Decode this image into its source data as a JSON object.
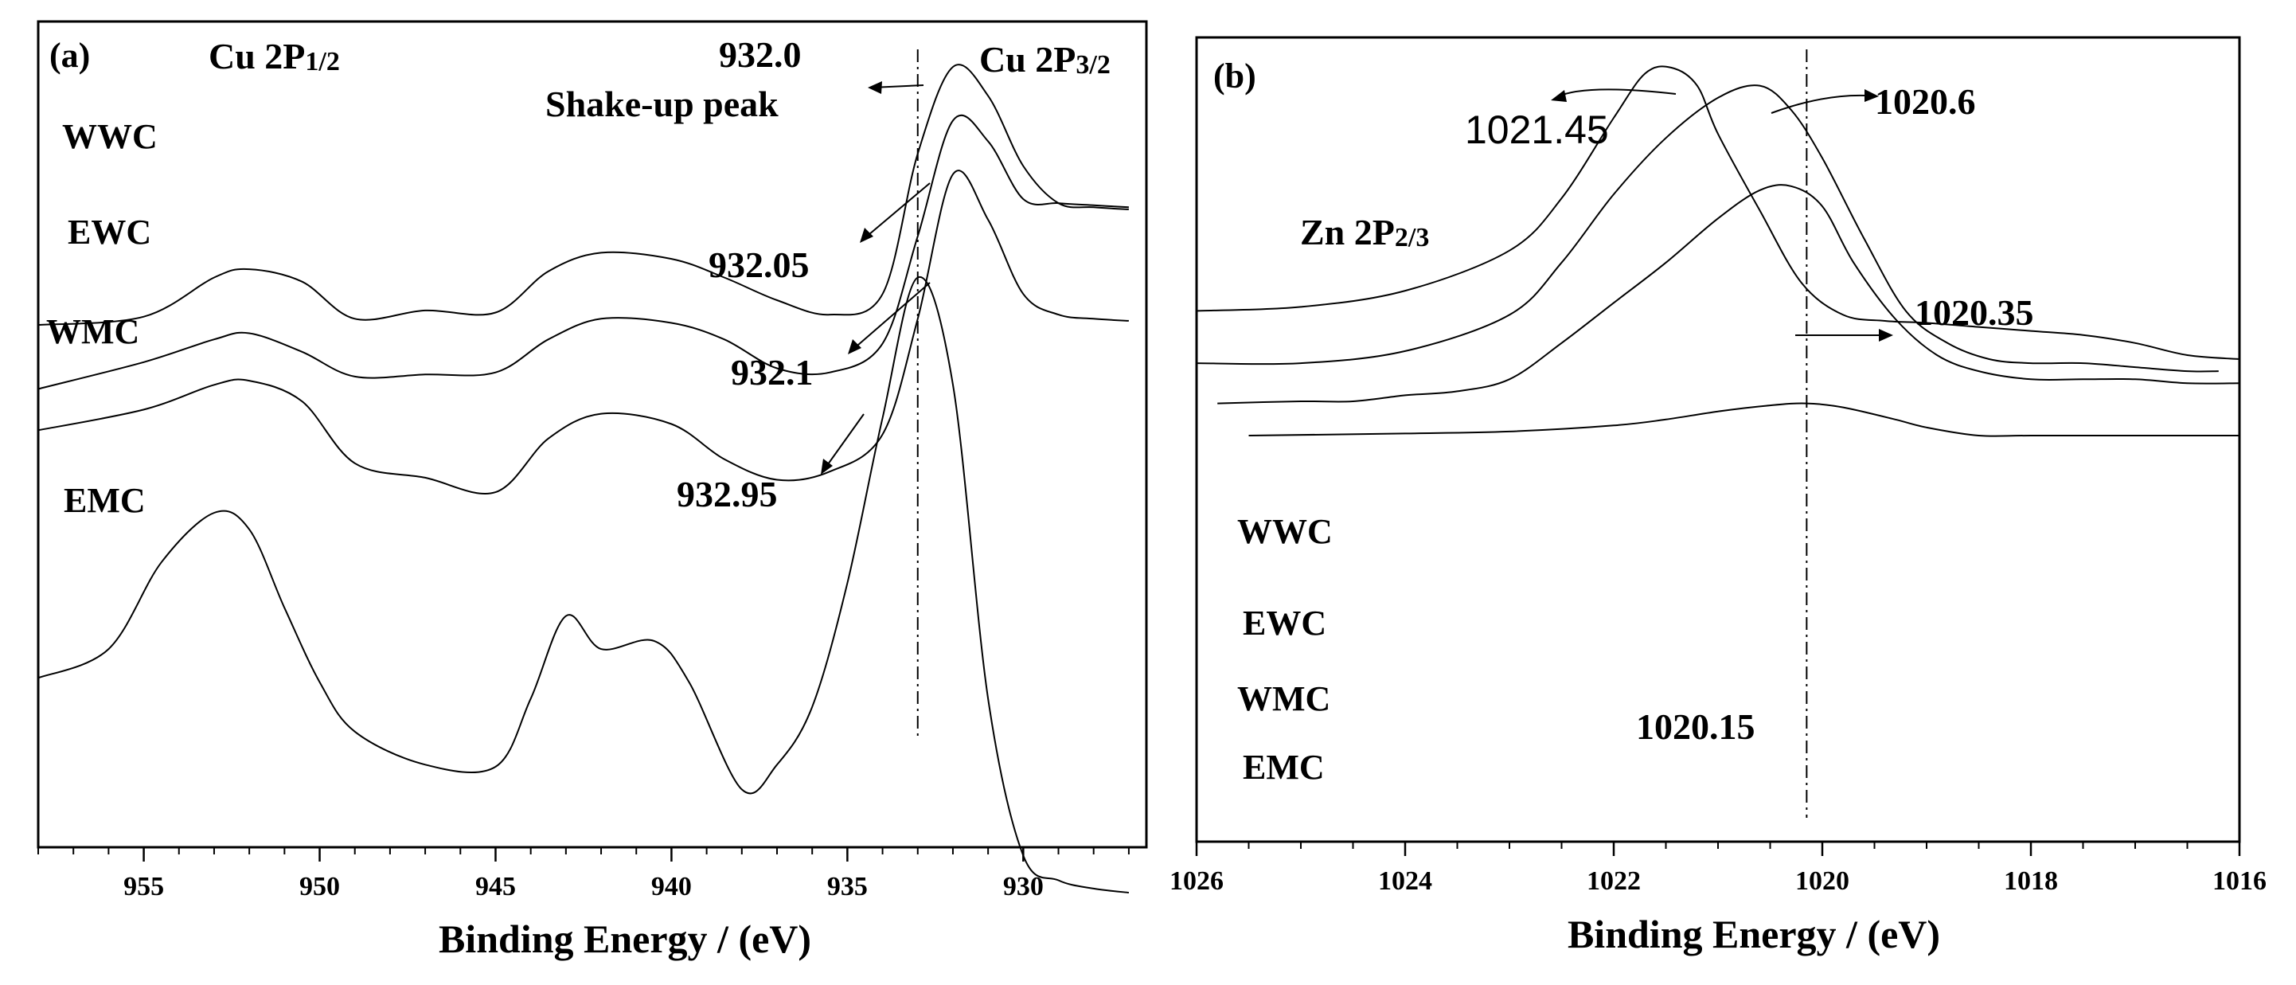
{
  "chart_data": [
    {
      "type": "line",
      "panel_label": "(a)",
      "xlabel": "Binding Energy / (eV)",
      "ylabel": "",
      "xlim": [
        958,
        926.5
      ],
      "x_reversed": true,
      "xticks": [
        955,
        950,
        945,
        940,
        935,
        930
      ],
      "x_minor_step": 1,
      "yticks": [],
      "reference_line_x": 933,
      "peak_labels": [
        {
          "text": "Cu 2P",
          "sub": "1/2"
        },
        {
          "text": "Cu 2P",
          "sub": "3/2"
        }
      ],
      "annotations": [
        {
          "text": "932.0",
          "kind": "value"
        },
        {
          "text": "Shake-up peak",
          "kind": "note"
        },
        {
          "text": "932.05",
          "kind": "value"
        },
        {
          "text": "932.1",
          "kind": "value"
        },
        {
          "text": "932.95",
          "kind": "value"
        }
      ],
      "series": [
        {
          "name": "WWC",
          "x": [
            958,
            955,
            953,
            952,
            950.5,
            949,
            947,
            945,
            943.5,
            942,
            940,
            938.5,
            937,
            935.5,
            934,
            933,
            932,
            931,
            930,
            929,
            928,
            927
          ],
          "y": [
            0.735,
            0.715,
            0.62,
            0.6,
            0.63,
            0.72,
            0.7,
            0.705,
            0.605,
            0.56,
            0.575,
            0.62,
            0.675,
            0.71,
            0.66,
            0.32,
            0.11,
            0.18,
            0.35,
            0.44,
            0.45,
            0.455
          ]
        },
        {
          "name": "EWC",
          "x": [
            958,
            955,
            953,
            952,
            950.5,
            949,
            947,
            945,
            943.5,
            942,
            940,
            938.5,
            937,
            935.5,
            934,
            933,
            932,
            931,
            930,
            929,
            928,
            927
          ],
          "y": [
            0.89,
            0.825,
            0.77,
            0.755,
            0.8,
            0.86,
            0.855,
            0.85,
            0.77,
            0.72,
            0.73,
            0.77,
            0.84,
            0.85,
            0.78,
            0.52,
            0.24,
            0.29,
            0.43,
            0.44,
            0.445,
            0.45
          ]
        },
        {
          "name": "WMC",
          "x": [
            958,
            955,
            953,
            952,
            950.5,
            949,
            947,
            945,
            943.5,
            942,
            940,
            938.5,
            937,
            935.5,
            934,
            933,
            932,
            931,
            930,
            929,
            928,
            927
          ],
          "y": [
            0.99,
            0.94,
            0.88,
            0.87,
            0.92,
            1.07,
            1.105,
            1.14,
            1.01,
            0.95,
            0.975,
            1.06,
            1.11,
            1.09,
            1.0,
            0.72,
            0.37,
            0.48,
            0.66,
            0.71,
            0.72,
            0.725
          ]
        },
        {
          "name": "EMC",
          "x": [
            958,
            956,
            954.5,
            953,
            952,
            951,
            950,
            949,
            947,
            945,
            944,
            943,
            942,
            940.5,
            939.5,
            938,
            937,
            936,
            935,
            934,
            933,
            932,
            931,
            930,
            929,
            928,
            927
          ],
          "y": [
            1.59,
            1.52,
            1.31,
            1.19,
            1.23,
            1.42,
            1.6,
            1.72,
            1.8,
            1.805,
            1.64,
            1.44,
            1.52,
            1.5,
            1.6,
            1.86,
            1.8,
            1.66,
            1.36,
            0.96,
            0.62,
            0.88,
            1.64,
            2.02,
            2.08,
            2.1,
            2.11
          ]
        }
      ]
    },
    {
      "type": "line",
      "panel_label": "(b)",
      "xlabel": "Binding Energy / (eV)",
      "ylabel": "",
      "xlim": [
        1026,
        1016
      ],
      "x_reversed": true,
      "xticks": [
        1026,
        1024,
        1022,
        1020,
        1018,
        1016
      ],
      "x_minor_step": 0.5,
      "yticks": [],
      "reference_line_x": 1020.15,
      "peak_labels": [
        {
          "text": "Zn 2P",
          "sub": "2/3"
        }
      ],
      "annotations": [
        {
          "text": "1021.45",
          "kind": "value"
        },
        {
          "text": "1020.6",
          "kind": "value"
        },
        {
          "text": "1020.35",
          "kind": "value"
        },
        {
          "text": "1020.15",
          "kind": "value"
        }
      ],
      "series": [
        {
          "name": "WWC",
          "x": [
            1026,
            1025,
            1024,
            1023,
            1022.5,
            1022,
            1021.7,
            1021.45,
            1021.2,
            1021,
            1020.6,
            1020.2,
            1019.8,
            1019.4,
            1019,
            1018.5,
            1018,
            1017.5,
            1017,
            1016.5,
            1016
          ],
          "y": [
            0.68,
            0.67,
            0.63,
            0.53,
            0.4,
            0.2,
            0.09,
            0.075,
            0.12,
            0.24,
            0.43,
            0.61,
            0.69,
            0.705,
            0.71,
            0.72,
            0.73,
            0.74,
            0.76,
            0.79,
            0.8
          ]
        },
        {
          "name": "EWC",
          "x": [
            1026,
            1025,
            1024,
            1023,
            1022.5,
            1022,
            1021.5,
            1021,
            1020.6,
            1020.3,
            1020,
            1019.6,
            1019.2,
            1018.8,
            1018.4,
            1018,
            1017.5,
            1017,
            1016.5,
            1016.2
          ],
          "y": [
            0.81,
            0.81,
            0.78,
            0.69,
            0.56,
            0.39,
            0.25,
            0.15,
            0.12,
            0.18,
            0.3,
            0.5,
            0.68,
            0.76,
            0.8,
            0.81,
            0.81,
            0.82,
            0.83,
            0.83
          ]
        },
        {
          "name": "WMC",
          "x": [
            1025.8,
            1025,
            1024.5,
            1024,
            1023.5,
            1023,
            1022.5,
            1022,
            1021.5,
            1021,
            1020.6,
            1020.3,
            1020,
            1019.7,
            1019.3,
            1018.9,
            1018.5,
            1018,
            1017.5,
            1017,
            1016.5,
            1016
          ],
          "y": [
            0.91,
            0.905,
            0.905,
            0.89,
            0.88,
            0.85,
            0.76,
            0.66,
            0.56,
            0.45,
            0.38,
            0.37,
            0.42,
            0.56,
            0.7,
            0.79,
            0.83,
            0.85,
            0.85,
            0.85,
            0.86,
            0.86
          ]
        },
        {
          "name": "EMC",
          "x": [
            1025.5,
            1024,
            1023,
            1022,
            1021.5,
            1021,
            1020.5,
            1020.15,
            1019.8,
            1019.3,
            1019,
            1018.5,
            1018,
            1017,
            1016
          ],
          "y": [
            0.99,
            0.985,
            0.98,
            0.965,
            0.95,
            0.93,
            0.915,
            0.91,
            0.92,
            0.95,
            0.97,
            0.99,
            0.99,
            0.99,
            0.99
          ]
        }
      ]
    }
  ]
}
